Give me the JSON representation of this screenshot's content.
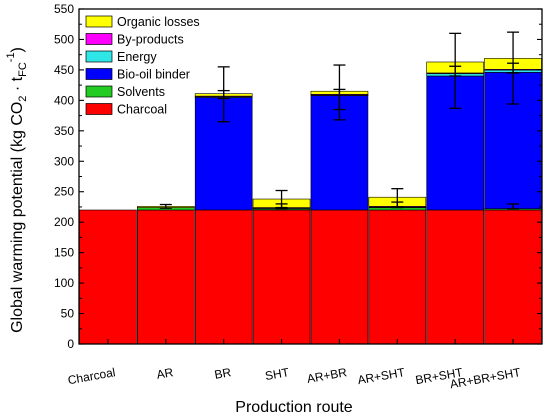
{
  "chart_data": {
    "type": "bar",
    "stacked": true,
    "xlabel": "Production route",
    "ylabel": {
      "pre": "Global warming potential (kg CO",
      "sub1": "2",
      "mid": " · t",
      "sub2": "FC",
      "sup": "-1",
      "post": ")"
    },
    "ylim": [
      0,
      550
    ],
    "yticks": [
      0,
      50,
      100,
      150,
      200,
      250,
      300,
      350,
      400,
      450,
      500,
      550
    ],
    "categories": [
      "Charcoal",
      "AR",
      "BR",
      "SHT",
      "AR+BR",
      "AR+SHT",
      "BR+SHT",
      "AR+BR+SHT"
    ],
    "legend_position": "top-left",
    "series": [
      {
        "name": "Charcoal",
        "color": "#ff0000",
        "values": [
          220,
          220,
          220,
          220,
          220,
          220,
          220,
          220
        ]
      },
      {
        "name": "Solvents",
        "color": "#22cc22",
        "values": [
          0,
          4,
          0,
          2,
          0,
          4,
          0,
          2
        ]
      },
      {
        "name": "Bio-oil binder",
        "color": "#0000ff",
        "values": [
          0,
          0,
          185,
          0,
          188,
          0,
          220,
          224
        ]
      },
      {
        "name": "Energy",
        "color": "#2ee6e6",
        "values": [
          0,
          0,
          1,
          1,
          1,
          1,
          4,
          4
        ]
      },
      {
        "name": "By-products",
        "color": "#ff00ff",
        "values": [
          0,
          0,
          1,
          1,
          1,
          1,
          1,
          1
        ]
      },
      {
        "name": "Organic losses",
        "color": "#ffff00",
        "values": [
          0,
          2,
          4,
          14,
          5,
          15,
          18,
          18
        ]
      }
    ],
    "legend_order": [
      "Organic losses",
      "By-products",
      "Energy",
      "Bio-oil binder",
      "Solvents",
      "Charcoal"
    ],
    "error_bars": [
      {
        "category": "AR",
        "center": 226,
        "low": 223,
        "high": 229
      },
      {
        "category": "BR",
        "center": 410,
        "low": 403,
        "high": 416
      },
      {
        "category": "BR",
        "center": 410,
        "low": 365,
        "high": 455
      },
      {
        "category": "SHT",
        "center": 226,
        "low": 222,
        "high": 230
      },
      {
        "category": "SHT",
        "center": 238,
        "low": 224,
        "high": 252
      },
      {
        "category": "AR+BR",
        "center": 413,
        "low": 385,
        "high": 418
      },
      {
        "category": "AR+BR",
        "center": 413,
        "low": 368,
        "high": 458
      },
      {
        "category": "AR+SHT",
        "center": 229,
        "low": 225,
        "high": 233
      },
      {
        "category": "AR+SHT",
        "center": 240,
        "low": 224,
        "high": 255
      },
      {
        "category": "AR+BR+SHT",
        "center": 226,
        "low": 222,
        "high": 230
      },
      {
        "category": "BR+SHT",
        "center": 448,
        "low": 440,
        "high": 456
      },
      {
        "category": "BR+SHT",
        "center": 448,
        "low": 387,
        "high": 510
      },
      {
        "category": "AR+BR+SHT",
        "center": 453,
        "low": 445,
        "high": 461
      },
      {
        "category": "AR+BR+SHT",
        "center": 453,
        "low": 394,
        "high": 512
      }
    ]
  }
}
